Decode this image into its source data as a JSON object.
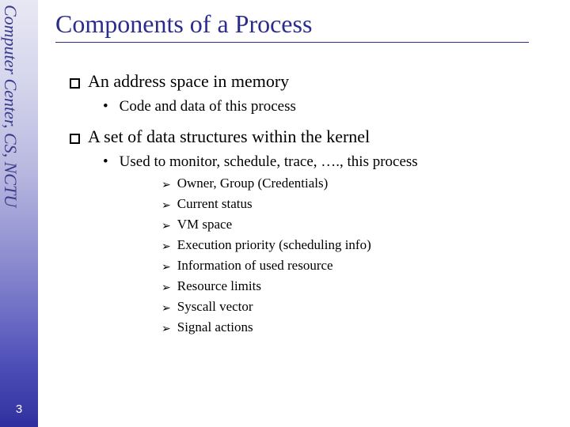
{
  "sidebar": {
    "label": "Computer Center, CS, NCTU",
    "page_number": "3",
    "text_color": "#3a3a8a"
  },
  "title": {
    "text": "Components of a Process",
    "color": "#2c2c8c",
    "fontsize": 32
  },
  "bullets": [
    {
      "text": "An address space in memory",
      "subs": [
        {
          "text": "Code and data of this process"
        }
      ]
    },
    {
      "text": "A set of data structures within the kernel",
      "subs": [
        {
          "text": "Used to monitor, schedule, trace, …., this process",
          "arrows": [
            "Owner, Group (Credentials)",
            "Current status",
            "VM space",
            "Execution priority (scheduling info)",
            "Information of used resource",
            "Resource limits",
            "Syscall vector",
            "Signal actions"
          ]
        }
      ]
    }
  ]
}
